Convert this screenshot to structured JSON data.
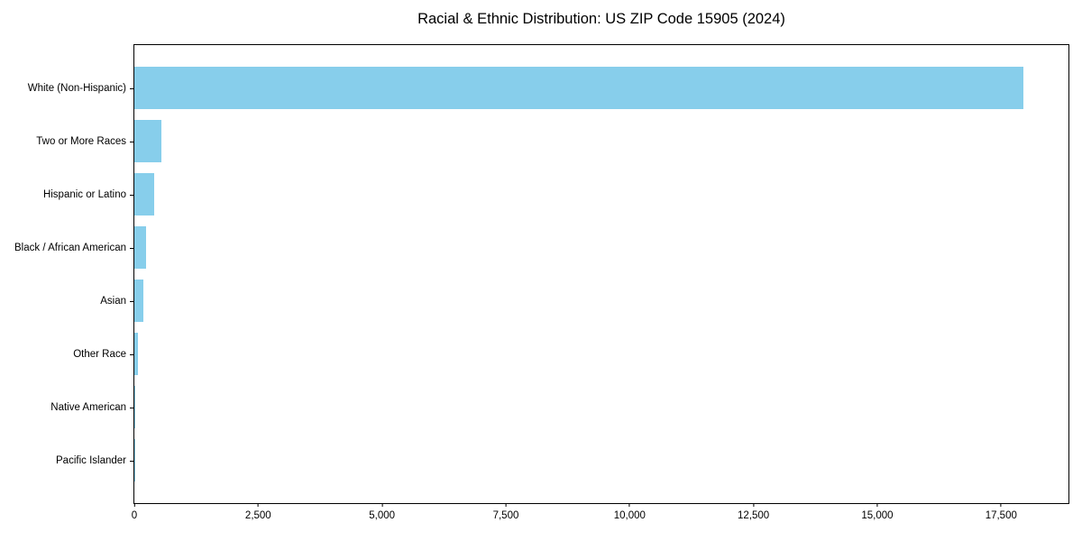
{
  "title": "Racial & Ethnic Distribution: US ZIP Code 15905 (2024)",
  "chart_data": {
    "type": "bar",
    "orientation": "horizontal",
    "title": "Racial & Ethnic Distribution: US ZIP Code 15905 (2024)",
    "xlabel": "",
    "ylabel": "",
    "categories": [
      "White (Non-Hispanic)",
      "Two or More Races",
      "Hispanic or Latino",
      "Black / African American",
      "Asian",
      "Other Race",
      "Native American",
      "Pacific Islander"
    ],
    "values": [
      17950,
      540,
      400,
      240,
      175,
      75,
      10,
      3
    ],
    "xlim": [
      0,
      18860
    ],
    "x_ticks": [
      0,
      2500,
      5000,
      7500,
      10000,
      12500,
      15000,
      17500
    ],
    "x_tick_labels": [
      "0",
      "2,500",
      "5,000",
      "7,500",
      "10,000",
      "12,500",
      "15,000",
      "17,500"
    ],
    "bar_color": "#87CEEB",
    "grid": false,
    "legend": "none"
  }
}
